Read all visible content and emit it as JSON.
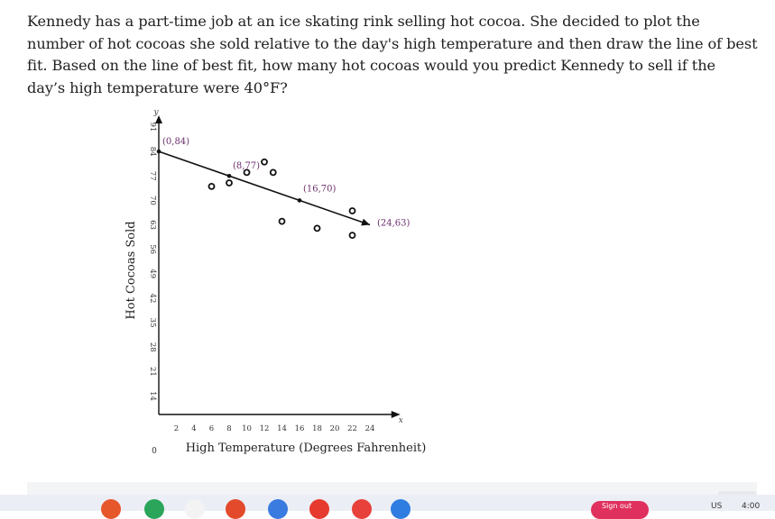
{
  "question": {
    "text": "Kennedy has a part-time job at an ice skating rink selling hot cocoa. She decided to plot the number of hot cocoas she sold relative to the day's high temperature and then draw the line of best fit. Based on the line of best fit, how many hot cocoas would you predict Kennedy to sell if the day’s high temperature were 40°F?"
  },
  "chart_data": {
    "type": "scatter",
    "xlabel": "High Temperature (Degrees Fahrenheit)",
    "ylabel": "Hot Cocoas Sold",
    "x_axis_letter": "x",
    "y_axis_letter": "y",
    "origin_label": "0",
    "xlim": [
      0,
      25
    ],
    "ylim": [
      14,
      91
    ],
    "x_ticks": [
      2,
      4,
      6,
      8,
      10,
      12,
      14,
      16,
      18,
      20,
      22,
      24
    ],
    "y_ticks": [
      14,
      21,
      28,
      35,
      42,
      49,
      56,
      63,
      70,
      77,
      84,
      91
    ],
    "points": [
      {
        "x": 6,
        "y": 74
      },
      {
        "x": 8,
        "y": 75
      },
      {
        "x": 10,
        "y": 78
      },
      {
        "x": 12,
        "y": 81
      },
      {
        "x": 13,
        "y": 78
      },
      {
        "x": 14,
        "y": 64
      },
      {
        "x": 18,
        "y": 62
      },
      {
        "x": 22,
        "y": 67
      },
      {
        "x": 22,
        "y": 60
      }
    ],
    "best_fit_line": {
      "points": [
        {
          "x": 0,
          "y": 84,
          "label": "(0,84)"
        },
        {
          "x": 8,
          "y": 77,
          "label": "(8,77)"
        },
        {
          "x": 16,
          "y": 70,
          "label": "(16,70)"
        },
        {
          "x": 24,
          "y": 63,
          "label": "(24,63)"
        }
      ],
      "color": "#111111"
    },
    "label_color": "#6b2f6b",
    "point_color": "#f5c400"
  },
  "taskbar": {
    "icon_colors": [
      "#e6572c",
      "#2aa55a",
      "#f3f3f3",
      "#e24a2b",
      "#3a7be0",
      "#e63a2e",
      "#e8403a",
      "#2f7de1"
    ],
    "pill_color": "#e0305d",
    "pill_text": "Sign out",
    "locale": "US",
    "time": "4:00"
  }
}
